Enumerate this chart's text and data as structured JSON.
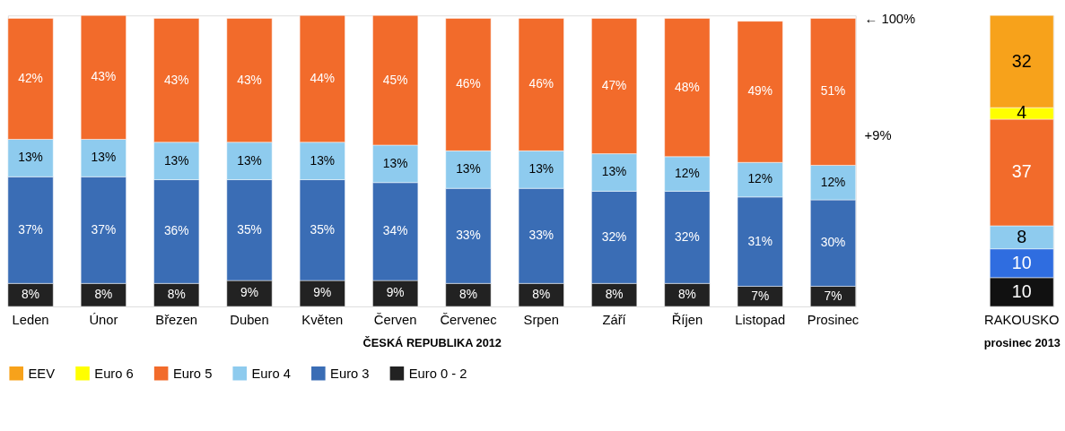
{
  "chart_data": [
    {
      "type": "bar",
      "stacked": true,
      "xlabel": "ČESKÁ REPUBLIKA 2012",
      "categories": [
        "Leden",
        "Únor",
        "Březen",
        "Duben",
        "Květen",
        "Červen",
        "Červenec",
        "Srpen",
        "Září",
        "Říjen",
        "Listopad",
        "Prosinec"
      ],
      "ylim": [
        0,
        101
      ],
      "tick_labels": "x",
      "legend": "bottom",
      "series": [
        {
          "name": "Euro 0 - 2",
          "color": "#222222",
          "values": [
            8,
            8,
            8,
            9,
            9,
            9,
            8,
            8,
            8,
            8,
            7,
            7
          ],
          "value_labels": [
            "8%",
            "8%",
            "8%",
            "9%",
            "9%",
            "9%",
            "8%",
            "8%",
            "8%",
            "8%",
            "7%",
            "7%"
          ]
        },
        {
          "name": "Euro 3",
          "color": "#3a6db5",
          "values": [
            37,
            37,
            36,
            35,
            35,
            34,
            33,
            33,
            32,
            32,
            31,
            30
          ],
          "value_labels": [
            "37%",
            "37%",
            "36%",
            "35%",
            "35%",
            "34%",
            "33%",
            "33%",
            "32%",
            "32%",
            "31%",
            "30%"
          ]
        },
        {
          "name": "Euro 4",
          "color": "#8ecbee",
          "values": [
            13,
            13,
            13,
            13,
            13,
            13,
            13,
            13,
            13,
            12,
            12,
            12
          ],
          "value_labels": [
            "13%",
            "13%",
            "13%",
            "13%",
            "13%",
            "13%",
            "13%",
            "13%",
            "13%",
            "12%",
            "12%",
            "12%"
          ]
        },
        {
          "name": "Euro 5",
          "color": "#f26b2b",
          "values": [
            42,
            43,
            43,
            43,
            44,
            45,
            46,
            46,
            47,
            48,
            49,
            51
          ],
          "value_labels": [
            "42%",
            "43%",
            "43%",
            "43%",
            "44%",
            "45%",
            "46%",
            "46%",
            "47%",
            "48%",
            "49%",
            "51%"
          ]
        },
        {
          "name": "Euro 6",
          "color": "#ffff00",
          "values": [
            null,
            null,
            null,
            null,
            null,
            null,
            null,
            null,
            null,
            null,
            null,
            null
          ]
        },
        {
          "name": "EEV",
          "color": "#f7a21b",
          "values": [
            null,
            null,
            null,
            null,
            null,
            null,
            null,
            null,
            null,
            null,
            null,
            null
          ]
        }
      ],
      "annotations": [
        "← 100%",
        "+9%"
      ]
    },
    {
      "type": "bar",
      "stacked": true,
      "xlabel": "prosinec 2013",
      "categories": [
        "RAKOUSKO"
      ],
      "ylim": [
        0,
        101
      ],
      "tick_labels": "x",
      "data_labels": true,
      "series": [
        {
          "color": "#111111",
          "values": [
            10
          ]
        },
        {
          "color": "#2f6de0",
          "values": [
            10
          ]
        },
        {
          "color": "#8ecbee",
          "values": [
            8
          ]
        },
        {
          "color": "#f26b2b",
          "values": [
            37
          ]
        },
        {
          "color": "#ffff00",
          "values": [
            4
          ]
        },
        {
          "color": "#f7a21b",
          "values": [
            32
          ]
        }
      ]
    }
  ]
}
